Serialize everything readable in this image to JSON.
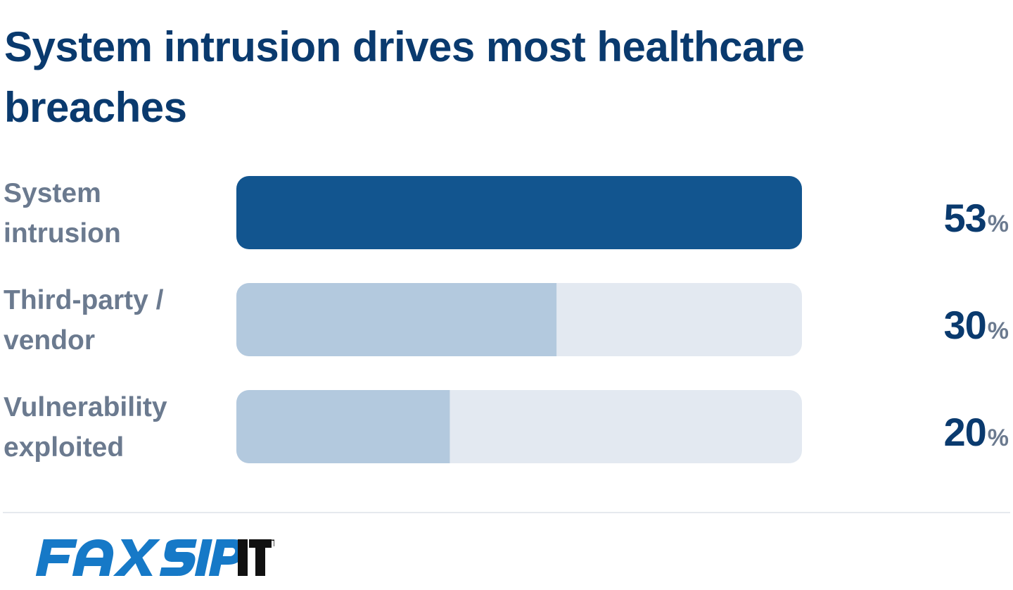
{
  "chart_data": {
    "type": "bar",
    "orientation": "horizontal",
    "title": "System intrusion drives most healthcare breaches",
    "categories": [
      {
        "line1": "System",
        "line2": "intrusion"
      },
      {
        "line1": "Third-party /",
        "line2": "vendor"
      },
      {
        "line1": "Vulnerability",
        "line2": "exploited"
      }
    ],
    "values": [
      53,
      30,
      20
    ],
    "value_labels": [
      "53",
      "30",
      "20"
    ],
    "unit": "%",
    "xlim": [
      0,
      53
    ],
    "grid": false,
    "colors": {
      "highlight": "#12558f",
      "fill": "#b3c9de",
      "track": "#e3e9f1",
      "title": "#0a3a6e",
      "label": "#6b7a8f"
    }
  },
  "logo": {
    "text": "FAXSIPIT",
    "trademark": "TM"
  }
}
